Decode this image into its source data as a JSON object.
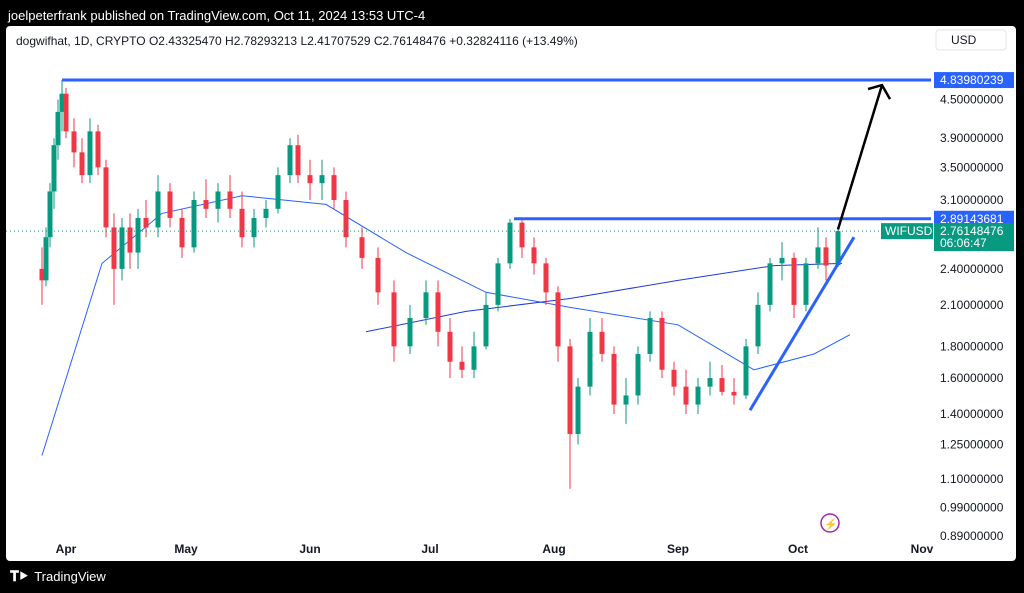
{
  "header": {
    "published": "joelpeterfrank published on TradingView.com, Oct 11, 2024 13:53 UTC-4"
  },
  "footer": {
    "brand": "TradingView",
    "logo_icon": "tradingview-logo-icon"
  },
  "colors": {
    "up": "#089981",
    "down": "#f23645",
    "accent": "#2962ff",
    "ma": "#2962ff"
  },
  "chart_data": {
    "type": "candlestick",
    "symbol": "dogwifhat, 1D, CRYPTO",
    "ohlc_label": {
      "o": "O2.43325470",
      "h": "H2.78293213",
      "l": "L2.41707529",
      "c": "C2.76148476",
      "chg": "+0.32824116 (+13.49%)"
    },
    "currency": "USD",
    "x_axis": [
      "Apr",
      "May",
      "Jun",
      "Jul",
      "Aug",
      "Sep",
      "Oct",
      "Nov"
    ],
    "y_ticks": [
      "4.50000000",
      "3.90000000",
      "3.50000000",
      "3.10000000",
      "2.40000000",
      "2.10000000",
      "1.80000000",
      "1.60000000",
      "1.40000000",
      "1.25000000",
      "1.10000000",
      "0.99000000",
      "0.89000000"
    ],
    "y_scale": "log",
    "y_range": [
      0.89,
      4.95
    ],
    "levels": [
      {
        "label": "4.83980239",
        "value": 4.8398
      },
      {
        "label": "2.89143681",
        "value": 2.8914
      }
    ],
    "last_price": {
      "symbol": "WIFUSD",
      "label": "2.76148476",
      "countdown": "06:06:47",
      "value": 2.7615
    },
    "series": [
      {
        "x": "2024-03-26",
        "o": 2.4,
        "h": 2.6,
        "l": 2.1,
        "c": 2.3
      },
      {
        "x": "2024-03-27",
        "o": 2.3,
        "h": 2.8,
        "l": 2.25,
        "c": 2.7
      },
      {
        "x": "2024-03-28",
        "o": 2.7,
        "h": 3.3,
        "l": 2.6,
        "c": 3.2
      },
      {
        "x": "2024-03-29",
        "o": 3.2,
        "h": 3.9,
        "l": 3.0,
        "c": 3.8
      },
      {
        "x": "2024-03-30",
        "o": 3.8,
        "h": 4.5,
        "l": 3.6,
        "c": 4.3
      },
      {
        "x": "2024-03-31",
        "o": 4.3,
        "h": 4.84,
        "l": 4.0,
        "c": 4.6
      },
      {
        "x": "2024-04-01",
        "o": 4.6,
        "h": 4.7,
        "l": 3.9,
        "c": 4.0
      },
      {
        "x": "2024-04-03",
        "o": 4.0,
        "h": 4.2,
        "l": 3.5,
        "c": 3.7
      },
      {
        "x": "2024-04-05",
        "o": 3.7,
        "h": 3.9,
        "l": 3.3,
        "c": 3.4
      },
      {
        "x": "2024-04-07",
        "o": 3.4,
        "h": 4.2,
        "l": 3.3,
        "c": 4.0
      },
      {
        "x": "2024-04-09",
        "o": 4.0,
        "h": 4.1,
        "l": 3.4,
        "c": 3.5
      },
      {
        "x": "2024-04-11",
        "o": 3.5,
        "h": 3.6,
        "l": 2.7,
        "c": 2.8
      },
      {
        "x": "2024-04-13",
        "o": 2.8,
        "h": 2.95,
        "l": 2.1,
        "c": 2.4
      },
      {
        "x": "2024-04-15",
        "o": 2.4,
        "h": 2.9,
        "l": 2.3,
        "c": 2.8
      },
      {
        "x": "2024-04-17",
        "o": 2.8,
        "h": 2.95,
        "l": 2.4,
        "c": 2.55
      },
      {
        "x": "2024-04-19",
        "o": 2.55,
        "h": 3.0,
        "l": 2.4,
        "c": 2.9
      },
      {
        "x": "2024-04-21",
        "o": 2.9,
        "h": 3.1,
        "l": 2.7,
        "c": 2.8
      },
      {
        "x": "2024-04-24",
        "o": 2.8,
        "h": 3.4,
        "l": 2.7,
        "c": 3.2
      },
      {
        "x": "2024-04-27",
        "o": 3.2,
        "h": 3.3,
        "l": 2.8,
        "c": 2.9
      },
      {
        "x": "2024-04-30",
        "o": 2.9,
        "h": 3.0,
        "l": 2.5,
        "c": 2.6
      },
      {
        "x": "2024-05-03",
        "o": 2.6,
        "h": 3.2,
        "l": 2.55,
        "c": 3.1
      },
      {
        "x": "2024-05-06",
        "o": 3.1,
        "h": 3.35,
        "l": 2.9,
        "c": 3.0
      },
      {
        "x": "2024-05-09",
        "o": 3.0,
        "h": 3.3,
        "l": 2.85,
        "c": 3.2
      },
      {
        "x": "2024-05-12",
        "o": 3.2,
        "h": 3.4,
        "l": 2.9,
        "c": 3.0
      },
      {
        "x": "2024-05-15",
        "o": 3.0,
        "h": 3.2,
        "l": 2.6,
        "c": 2.7
      },
      {
        "x": "2024-05-18",
        "o": 2.7,
        "h": 3.0,
        "l": 2.6,
        "c": 2.9
      },
      {
        "x": "2024-05-21",
        "o": 2.9,
        "h": 3.1,
        "l": 2.8,
        "c": 3.0
      },
      {
        "x": "2024-05-24",
        "o": 3.0,
        "h": 3.5,
        "l": 2.95,
        "c": 3.4
      },
      {
        "x": "2024-05-27",
        "o": 3.4,
        "h": 3.9,
        "l": 3.3,
        "c": 3.8
      },
      {
        "x": "2024-05-29",
        "o": 3.8,
        "h": 3.95,
        "l": 3.3,
        "c": 3.4
      },
      {
        "x": "2024-06-01",
        "o": 3.4,
        "h": 3.6,
        "l": 3.1,
        "c": 3.3
      },
      {
        "x": "2024-06-04",
        "o": 3.3,
        "h": 3.6,
        "l": 3.1,
        "c": 3.4
      },
      {
        "x": "2024-06-07",
        "o": 3.4,
        "h": 3.5,
        "l": 3.0,
        "c": 3.1
      },
      {
        "x": "2024-06-10",
        "o": 3.1,
        "h": 3.2,
        "l": 2.6,
        "c": 2.7
      },
      {
        "x": "2024-06-14",
        "o": 2.7,
        "h": 2.8,
        "l": 2.4,
        "c": 2.5
      },
      {
        "x": "2024-06-18",
        "o": 2.5,
        "h": 2.6,
        "l": 2.1,
        "c": 2.2
      },
      {
        "x": "2024-06-22",
        "o": 2.2,
        "h": 2.3,
        "l": 1.7,
        "c": 1.8
      },
      {
        "x": "2024-06-26",
        "o": 1.8,
        "h": 2.1,
        "l": 1.75,
        "c": 2.0
      },
      {
        "x": "2024-06-30",
        "o": 2.0,
        "h": 2.3,
        "l": 1.95,
        "c": 2.2
      },
      {
        "x": "2024-07-03",
        "o": 2.2,
        "h": 2.3,
        "l": 1.8,
        "c": 1.9
      },
      {
        "x": "2024-07-06",
        "o": 1.9,
        "h": 2.0,
        "l": 1.6,
        "c": 1.7
      },
      {
        "x": "2024-07-09",
        "o": 1.7,
        "h": 1.8,
        "l": 1.6,
        "c": 1.65
      },
      {
        "x": "2024-07-12",
        "o": 1.65,
        "h": 1.9,
        "l": 1.6,
        "c": 1.8
      },
      {
        "x": "2024-07-15",
        "o": 1.8,
        "h": 2.2,
        "l": 1.78,
        "c": 2.1
      },
      {
        "x": "2024-07-18",
        "o": 2.1,
        "h": 2.5,
        "l": 2.05,
        "c": 2.45
      },
      {
        "x": "2024-07-21",
        "o": 2.45,
        "h": 2.89,
        "l": 2.4,
        "c": 2.85
      },
      {
        "x": "2024-07-24",
        "o": 2.85,
        "h": 2.9,
        "l": 2.5,
        "c": 2.6
      },
      {
        "x": "2024-07-27",
        "o": 2.6,
        "h": 2.7,
        "l": 2.35,
        "c": 2.45
      },
      {
        "x": "2024-07-30",
        "o": 2.45,
        "h": 2.5,
        "l": 2.1,
        "c": 2.2
      },
      {
        "x": "2024-08-02",
        "o": 2.2,
        "h": 2.25,
        "l": 1.7,
        "c": 1.8
      },
      {
        "x": "2024-08-05",
        "o": 1.8,
        "h": 1.85,
        "l": 1.06,
        "c": 1.3
      },
      {
        "x": "2024-08-07",
        "o": 1.3,
        "h": 1.6,
        "l": 1.25,
        "c": 1.55
      },
      {
        "x": "2024-08-10",
        "o": 1.55,
        "h": 2.0,
        "l": 1.5,
        "c": 1.9
      },
      {
        "x": "2024-08-13",
        "o": 1.9,
        "h": 2.0,
        "l": 1.7,
        "c": 1.75
      },
      {
        "x": "2024-08-16",
        "o": 1.75,
        "h": 1.8,
        "l": 1.4,
        "c": 1.45
      },
      {
        "x": "2024-08-19",
        "o": 1.45,
        "h": 1.6,
        "l": 1.35,
        "c": 1.5
      },
      {
        "x": "2024-08-22",
        "o": 1.5,
        "h": 1.8,
        "l": 1.45,
        "c": 1.75
      },
      {
        "x": "2024-08-25",
        "o": 1.75,
        "h": 2.05,
        "l": 1.7,
        "c": 2.0
      },
      {
        "x": "2024-08-28",
        "o": 2.0,
        "h": 2.05,
        "l": 1.6,
        "c": 1.65
      },
      {
        "x": "2024-08-31",
        "o": 1.65,
        "h": 1.7,
        "l": 1.5,
        "c": 1.55
      },
      {
        "x": "2024-09-03",
        "o": 1.55,
        "h": 1.65,
        "l": 1.4,
        "c": 1.45
      },
      {
        "x": "2024-09-06",
        "o": 1.45,
        "h": 1.6,
        "l": 1.4,
        "c": 1.55
      },
      {
        "x": "2024-09-09",
        "o": 1.55,
        "h": 1.7,
        "l": 1.5,
        "c": 1.6
      },
      {
        "x": "2024-09-12",
        "o": 1.6,
        "h": 1.68,
        "l": 1.5,
        "c": 1.52
      },
      {
        "x": "2024-09-15",
        "o": 1.52,
        "h": 1.6,
        "l": 1.45,
        "c": 1.5
      },
      {
        "x": "2024-09-18",
        "o": 1.5,
        "h": 1.85,
        "l": 1.48,
        "c": 1.8
      },
      {
        "x": "2024-09-21",
        "o": 1.8,
        "h": 2.2,
        "l": 1.75,
        "c": 2.1
      },
      {
        "x": "2024-09-24",
        "o": 2.1,
        "h": 2.5,
        "l": 2.05,
        "c": 2.45
      },
      {
        "x": "2024-09-27",
        "o": 2.45,
        "h": 2.65,
        "l": 2.3,
        "c": 2.5
      },
      {
        "x": "2024-09-30",
        "o": 2.5,
        "h": 2.55,
        "l": 2.0,
        "c": 2.1
      },
      {
        "x": "2024-10-03",
        "o": 2.1,
        "h": 2.5,
        "l": 2.05,
        "c": 2.45
      },
      {
        "x": "2024-10-06",
        "o": 2.45,
        "h": 2.8,
        "l": 2.4,
        "c": 2.6
      },
      {
        "x": "2024-10-08",
        "o": 2.6,
        "h": 2.7,
        "l": 2.3,
        "c": 2.43
      },
      {
        "x": "2024-10-11",
        "o": 2.4333,
        "h": 2.7829,
        "l": 2.4171,
        "c": 2.7615
      }
    ],
    "ma_long": [
      {
        "x": "2024-03-26",
        "y": 1.2
      },
      {
        "x": "2024-04-10",
        "y": 2.45
      },
      {
        "x": "2024-04-25",
        "y": 2.95
      },
      {
        "x": "2024-05-15",
        "y": 3.15
      },
      {
        "x": "2024-06-05",
        "y": 3.05
      },
      {
        "x": "2024-06-25",
        "y": 2.55
      },
      {
        "x": "2024-07-15",
        "y": 2.2
      },
      {
        "x": "2024-08-05",
        "y": 2.08
      },
      {
        "x": "2024-09-01",
        "y": 1.95
      },
      {
        "x": "2024-09-20",
        "y": 1.65
      },
      {
        "x": "2024-10-05",
        "y": 1.75
      },
      {
        "x": "2024-10-14",
        "y": 1.88
      }
    ],
    "ma_short": [
      {
        "x": "2024-06-15",
        "y": 1.9
      },
      {
        "x": "2024-07-10",
        "y": 2.05
      },
      {
        "x": "2024-08-05",
        "y": 2.15
      },
      {
        "x": "2024-09-01",
        "y": 2.3
      },
      {
        "x": "2024-09-25",
        "y": 2.43
      },
      {
        "x": "2024-10-12",
        "y": 2.45
      }
    ],
    "annotations": {
      "trendline": [
        {
          "x": "2024-09-19",
          "y": 1.42
        },
        {
          "x": "2024-10-15",
          "y": 2.7
        }
      ],
      "arrow": [
        {
          "x": "2024-10-11",
          "y": 2.78
        },
        {
          "x": "2024-10-22",
          "y": 4.75
        }
      ]
    }
  }
}
